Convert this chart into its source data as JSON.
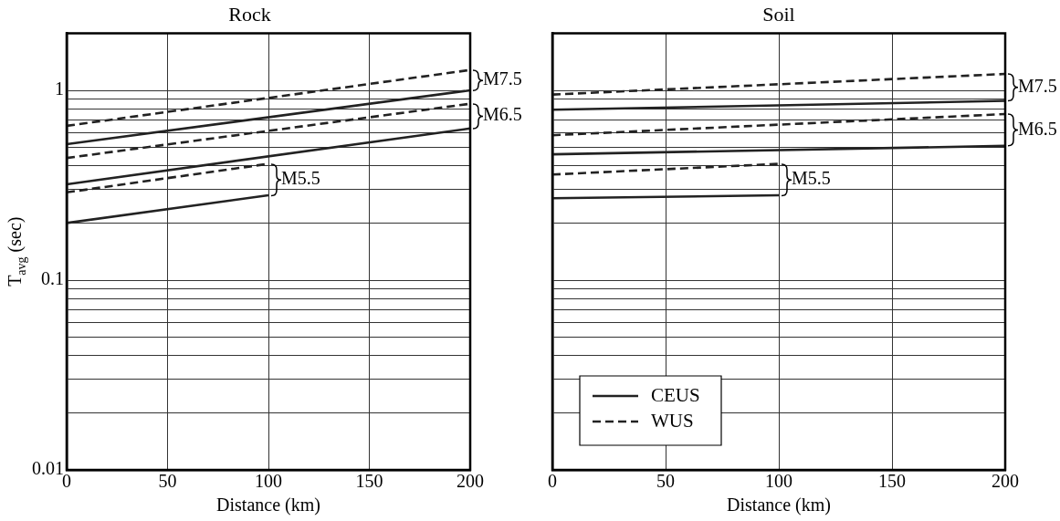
{
  "chart_data": [
    {
      "type": "line",
      "title": "Rock",
      "xlabel": "Distance (km)",
      "ylabel": "T$_{avg}$ (sec)",
      "log": "y",
      "xlim": [
        0,
        200
      ],
      "xticks": [
        0,
        50,
        100,
        150,
        200
      ],
      "ylim": [
        0.01,
        2
      ],
      "yticks": [
        0.01,
        {
          "value": 0.02,
          "label": null
        },
        {
          "value": 0.03,
          "label": null
        },
        {
          "value": 0.04,
          "label": null
        },
        {
          "value": 0.05,
          "label": null
        },
        {
          "value": 0.06,
          "label": null
        },
        {
          "value": 0.07,
          "label": null
        },
        {
          "value": 0.08,
          "label": null
        },
        {
          "value": 0.09,
          "label": null
        },
        0.1,
        {
          "value": 0.2,
          "label": null
        },
        {
          "value": 0.3,
          "label": null
        },
        {
          "value": 0.4,
          "label": null
        },
        {
          "value": 0.5,
          "label": null
        },
        {
          "value": 0.6,
          "label": null
        },
        {
          "value": 0.7,
          "label": null
        },
        {
          "value": 0.8,
          "label": null
        },
        {
          "value": 0.9,
          "label": null
        },
        1
      ],
      "grid": true,
      "series": [
        {
          "color": "#222222",
          "line_style": "dashed",
          "x": [
            0,
            200
          ],
          "values": [
            0.65,
            1.28
          ]
        },
        {
          "color": "#222222",
          "line_style": "solid",
          "x": [
            0,
            200
          ],
          "values": [
            0.52,
            1.0
          ]
        },
        {
          "color": "#222222",
          "line_style": "dashed",
          "x": [
            0,
            200
          ],
          "values": [
            0.44,
            0.85
          ]
        },
        {
          "color": "#222222",
          "line_style": "solid",
          "x": [
            0,
            200
          ],
          "values": [
            0.32,
            0.63
          ]
        },
        {
          "color": "#222222",
          "line_style": "dashed",
          "x": [
            0,
            100
          ],
          "values": [
            0.29,
            0.41
          ]
        },
        {
          "color": "#222222",
          "line_style": "solid",
          "x": [
            0,
            100
          ],
          "values": [
            0.2,
            0.28
          ]
        }
      ],
      "annotations": [
        "M7.5",
        "M6.5",
        "M5.5"
      ]
    },
    {
      "type": "line",
      "title": "Soil",
      "xlabel": "Distance (km)",
      "log": "y",
      "tick_labels": "x",
      "xlim": [
        0,
        200
      ],
      "xticks": [
        0,
        50,
        100,
        150,
        200
      ],
      "ylim": [
        0.01,
        2
      ],
      "yticks": [
        0.01,
        {
          "value": 0.02,
          "label": null
        },
        {
          "value": 0.03,
          "label": null
        },
        {
          "value": 0.04,
          "label": null
        },
        {
          "value": 0.05,
          "label": null
        },
        {
          "value": 0.06,
          "label": null
        },
        {
          "value": 0.07,
          "label": null
        },
        {
          "value": 0.08,
          "label": null
        },
        {
          "value": 0.09,
          "label": null
        },
        0.1,
        {
          "value": 0.2,
          "label": null
        },
        {
          "value": 0.3,
          "label": null
        },
        {
          "value": 0.4,
          "label": null
        },
        {
          "value": 0.5,
          "label": null
        },
        {
          "value": 0.6,
          "label": null
        },
        {
          "value": 0.7,
          "label": null
        },
        {
          "value": 0.8,
          "label": null
        },
        {
          "value": 0.9,
          "label": null
        },
        1
      ],
      "grid": true,
      "legend": "bottom left",
      "series": [
        {
          "name": "CEUS",
          "color": "#222222",
          "line_style": "solid",
          "x": [
            0,
            200
          ],
          "values": [
            0.79,
            0.88
          ]
        },
        {
          "name": "WUS",
          "color": "#222222",
          "line_style": "dashed",
          "x": [
            0,
            200
          ],
          "values": [
            0.95,
            1.22
          ]
        },
        {
          "color": "#222222",
          "line_style": "dashed",
          "x": [
            0,
            200
          ],
          "values": [
            0.58,
            0.75
          ]
        },
        {
          "color": "#222222",
          "line_style": "solid",
          "x": [
            0,
            200
          ],
          "values": [
            0.46,
            0.51
          ]
        },
        {
          "color": "#222222",
          "line_style": "dashed",
          "x": [
            0,
            100
          ],
          "values": [
            0.36,
            0.41
          ]
        },
        {
          "color": "#222222",
          "line_style": "solid",
          "x": [
            0,
            100
          ],
          "values": [
            0.27,
            0.28
          ]
        }
      ],
      "annotations": [
        "M7.5",
        "M6.5",
        "M5.5"
      ]
    }
  ]
}
